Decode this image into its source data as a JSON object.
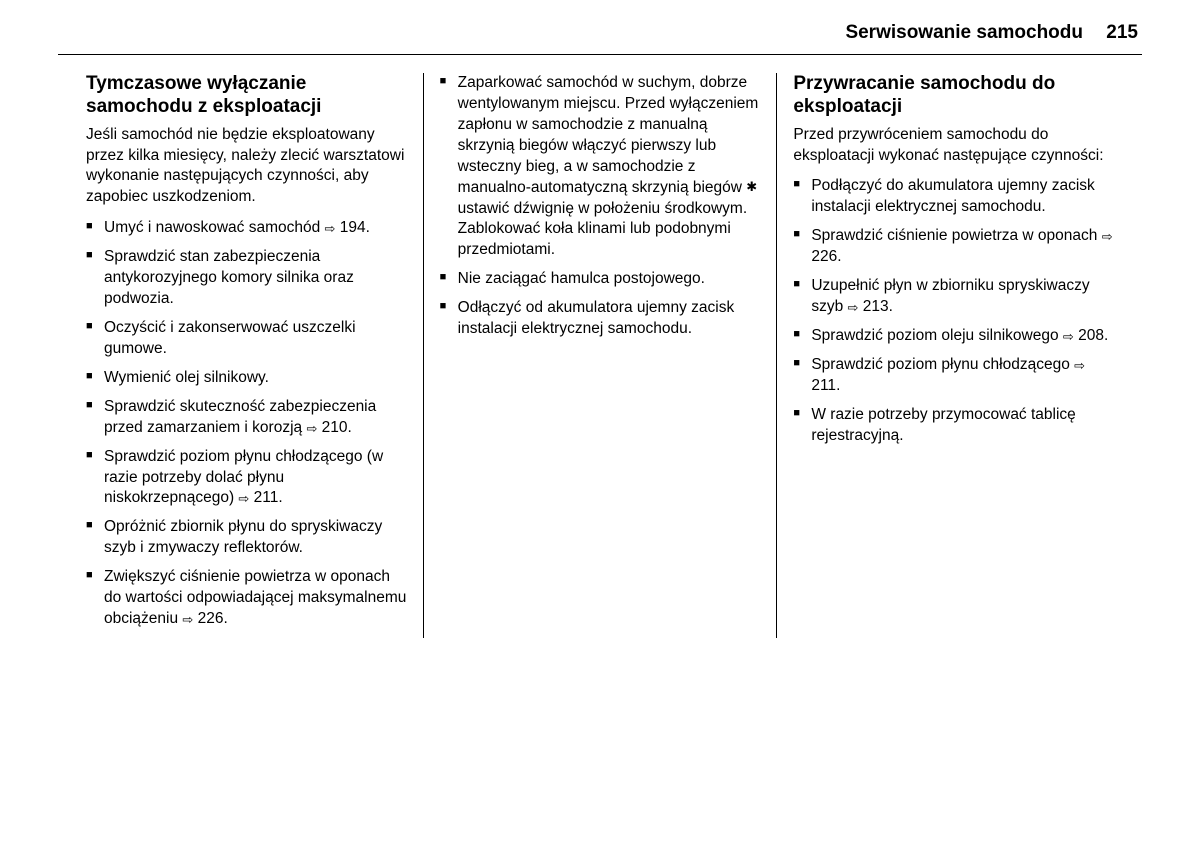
{
  "header": {
    "section_title": "Serwisowanie samochodu",
    "page_number": "215"
  },
  "refs": {
    "r194": "194",
    "r210": "210",
    "r211": "211",
    "r226": "226",
    "r213": "213",
    "r208": "208"
  },
  "col1": {
    "title": "Tymczasowe wyłączanie samochodu z eksploatacji",
    "intro": "Jeśli samochód nie będzie eksploatowany przez kilka miesięcy, należy zlecić warsztatowi wykonanie następujących czynności, aby zapobiec uszkodzeniom.",
    "items": {
      "i0a": "Umyć i nawoskować samochód ",
      "i0b": ".",
      "i1": "Sprawdzić stan zabezpieczenia antykorozyjnego komory silnika oraz podwozia.",
      "i2": "Oczyścić i zakonserwować uszczelki gumowe.",
      "i3": "Wymienić olej silnikowy.",
      "i4a": "Sprawdzić skuteczność zabezpieczenia przed zamarzaniem i korozją ",
      "i4b": ".",
      "i5a": "Sprawdzić poziom płynu chłodzącego (w razie potrzeby dolać płynu niskokrzepnącego) ",
      "i5b": ".",
      "i6": "Opróżnić zbiornik płynu do spryskiwaczy szyb i zmywaczy reflektorów.",
      "i7a": "Zwiększyć ciśnienie powietrza w oponach do wartości odpowiadającej maksymalnemu obciążeniu ",
      "i7b": "."
    }
  },
  "col2": {
    "items": {
      "i0a": "Zaparkować samochód w suchym, dobrze wentylowanym miejscu. Przed wyłączeniem zapłonu w samochodzie z manualną skrzynią biegów włączyć pierwszy lub wsteczny bieg, a w samochodzie z manualno-automatyczną skrzynią biegów ",
      "i0b": " ustawić dźwignię w położeniu środkowym. Zablokować koła klinami lub podobnymi przedmiotami.",
      "i1": "Nie zaciągać hamulca postojowego.",
      "i2": "Odłączyć od akumulatora ujemny zacisk instalacji elektrycznej samochodu."
    }
  },
  "col3": {
    "title": "Przywracanie samochodu do eksploatacji",
    "intro": "Przed przywróceniem samochodu do eksploatacji wykonać następujące czynności:",
    "items": {
      "i0": "Podłączyć do akumulatora ujemny zacisk instalacji elektrycznej samochodu.",
      "i1a": "Sprawdzić ciśnienie powietrza w oponach ",
      "i1b": ".",
      "i2a": "Uzupełnić płyn w zbiorniku spryskiwaczy szyb ",
      "i2b": ".",
      "i3a": "Sprawdzić poziom oleju silnikowego ",
      "i3b": ".",
      "i4a": "Sprawdzić poziom płynu chłodzącego ",
      "i4b": ".",
      "i5": "W razie potrzeby przymocować tablicę rejestracyjną."
    }
  },
  "symbols": {
    "arrow": "⇨",
    "snow": "✱"
  }
}
